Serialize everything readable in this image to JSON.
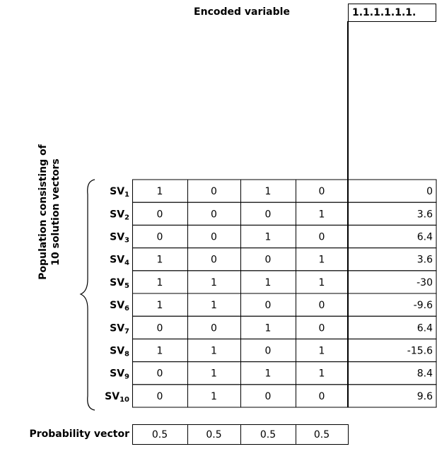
{
  "header": {
    "title": "Encoded variable",
    "encoded_value": "1.1.1.1.1.1."
  },
  "population_label": [
    "Population consisting of",
    "10 solution vectors"
  ],
  "table": {
    "rows": [
      {
        "label": "SV",
        "sub": "1",
        "bits": [
          1,
          0,
          1,
          0
        ],
        "value": 0
      },
      {
        "label": "SV",
        "sub": "2",
        "bits": [
          0,
          0,
          0,
          1
        ],
        "value": 3.6
      },
      {
        "label": "SV",
        "sub": "3",
        "bits": [
          0,
          0,
          1,
          0
        ],
        "value": 6.4
      },
      {
        "label": "SV",
        "sub": "4",
        "bits": [
          1,
          0,
          0,
          1
        ],
        "value": 3.6
      },
      {
        "label": "SV",
        "sub": "5",
        "bits": [
          1,
          1,
          1,
          1
        ],
        "value": -30
      },
      {
        "label": "SV",
        "sub": "6",
        "bits": [
          1,
          1,
          0,
          0
        ],
        "value": -9.6
      },
      {
        "label": "SV",
        "sub": "7",
        "bits": [
          0,
          0,
          1,
          0
        ],
        "value": 6.4
      },
      {
        "label": "SV",
        "sub": "8",
        "bits": [
          1,
          1,
          0,
          1
        ],
        "value": -15.6
      },
      {
        "label": "SV",
        "sub": "9",
        "bits": [
          0,
          1,
          1,
          1
        ],
        "value": 8.4
      },
      {
        "label": "SV",
        "sub": "10",
        "bits": [
          0,
          1,
          0,
          0
        ],
        "value": 9.6
      }
    ]
  },
  "probability_vector": {
    "label": "Probability vector",
    "values": [
      0.5,
      0.5,
      0.5,
      0.5
    ]
  }
}
